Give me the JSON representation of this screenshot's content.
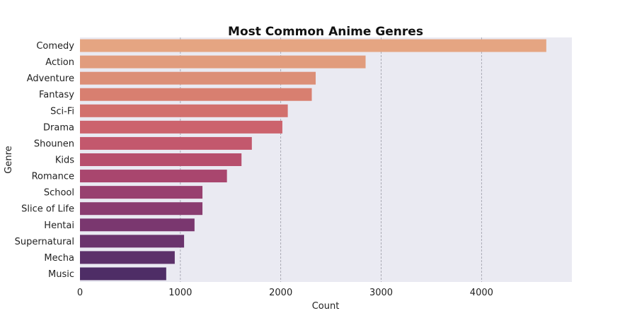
{
  "chart_data": {
    "type": "bar",
    "orientation": "horizontal",
    "title": "Most Common Anime Genres",
    "xlabel": "Count",
    "ylabel": "Genre",
    "categories": [
      "Comedy",
      "Action",
      "Adventure",
      "Fantasy",
      "Sci-Fi",
      "Drama",
      "Shounen",
      "Kids",
      "Romance",
      "School",
      "Slice of Life",
      "Hentai",
      "Supernatural",
      "Mecha",
      "Music"
    ],
    "values": [
      4645,
      2845,
      2348,
      2309,
      2070,
      2016,
      1712,
      1609,
      1464,
      1220,
      1220,
      1141,
      1037,
      944,
      859
    ],
    "xlim": [
      0,
      4900
    ],
    "xticks": [
      0,
      1000,
      2000,
      3000,
      4000
    ],
    "xtick_labels": [
      "0",
      "1000",
      "2000",
      "3000",
      "4000"
    ],
    "grid": "vertical dashed",
    "palette": [
      "#e5a582",
      "#e19c7d",
      "#dc8f77",
      "#d87f70",
      "#d2706d",
      "#cc636d",
      "#c3586d",
      "#b74f6d",
      "#a9466e",
      "#98406f",
      "#8a3c70",
      "#7a376f",
      "#6b346d",
      "#5c316a",
      "#4e2d66"
    ],
    "plot_bg": "#eaeaf2"
  }
}
